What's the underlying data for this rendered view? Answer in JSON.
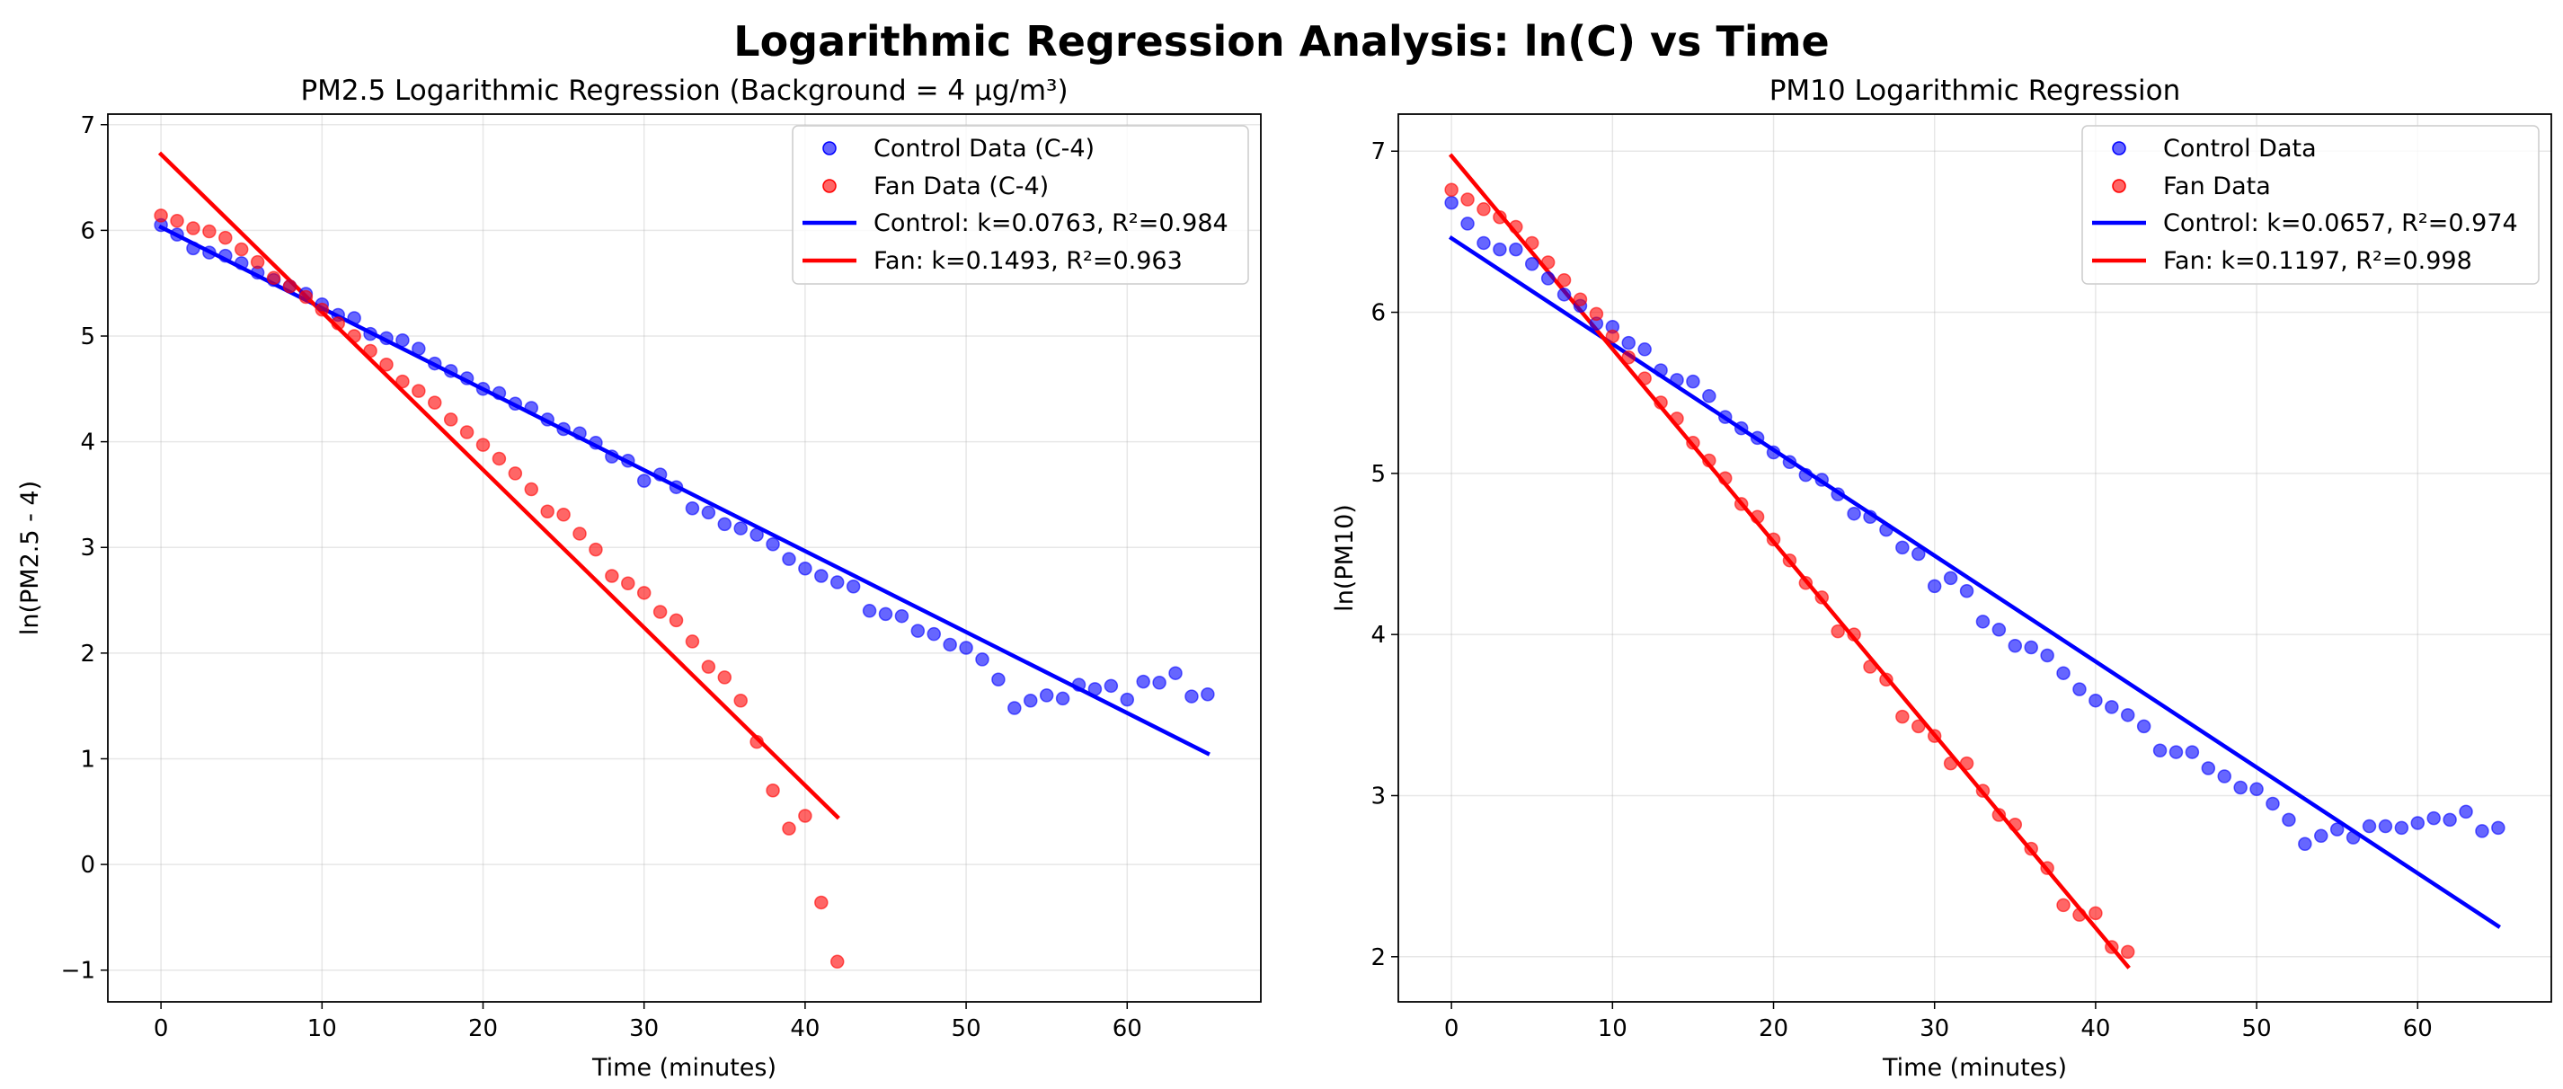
{
  "figure_title": "Logarithmic Regression Analysis: ln(C) vs Time",
  "colors": {
    "control": "#0000ff",
    "fan": "#ff0000"
  },
  "chart_data": [
    {
      "type": "scatter",
      "title": "PM2.5 Logarithmic Regression (Background = 4 μg/m³)",
      "xlabel": "Time (minutes)",
      "ylabel": "ln(PM2.5 - 4)",
      "xlim": [
        -3.3,
        68.3
      ],
      "ylim": [
        -1.3,
        7.1
      ],
      "xticks": [
        0,
        10,
        20,
        30,
        40,
        50,
        60
      ],
      "yticks": [
        -1,
        0,
        1,
        2,
        3,
        4,
        5,
        6,
        7
      ],
      "ytick_labels": [
        "−1",
        "0",
        "1",
        "2",
        "3",
        "4",
        "5",
        "6",
        "7"
      ],
      "grid": true,
      "legend_position": "upper right",
      "series": [
        {
          "name": "Control Data (C-4)",
          "kind": "scatter",
          "color": "#0000ff",
          "x": [
            0,
            1,
            2,
            3,
            4,
            5,
            6,
            7,
            8,
            9,
            10,
            11,
            12,
            13,
            14,
            15,
            16,
            17,
            18,
            19,
            20,
            21,
            22,
            23,
            24,
            25,
            26,
            27,
            28,
            29,
            30,
            31,
            32,
            33,
            34,
            35,
            36,
            37,
            38,
            39,
            40,
            41,
            42,
            43,
            44,
            45,
            46,
            47,
            48,
            49,
            50,
            51,
            52,
            53,
            54,
            55,
            56,
            57,
            58,
            59,
            60,
            61,
            62,
            63,
            64,
            65
          ],
          "y": [
            6.05,
            5.96,
            5.83,
            5.79,
            5.76,
            5.69,
            5.6,
            5.53,
            5.47,
            5.4,
            5.3,
            5.2,
            5.17,
            5.02,
            4.98,
            4.96,
            4.88,
            4.74,
            4.67,
            4.6,
            4.5,
            4.46,
            4.36,
            4.32,
            4.21,
            4.12,
            4.08,
            3.99,
            3.86,
            3.82,
            3.63,
            3.69,
            3.57,
            3.37,
            3.33,
            3.22,
            3.18,
            3.12,
            3.03,
            2.89,
            2.8,
            2.73,
            2.67,
            2.63,
            2.4,
            2.37,
            2.35,
            2.21,
            2.18,
            2.08,
            2.05,
            1.94,
            1.75,
            1.48,
            1.55,
            1.6,
            1.57,
            1.7,
            1.66,
            1.69,
            1.56,
            1.73,
            1.72,
            1.81,
            1.59,
            1.61
          ]
        },
        {
          "name": "Fan Data (C-4)",
          "kind": "scatter",
          "color": "#ff0000",
          "x": [
            0,
            1,
            2,
            3,
            4,
            5,
            6,
            7,
            8,
            9,
            10,
            11,
            12,
            13,
            14,
            15,
            16,
            17,
            18,
            19,
            20,
            21,
            22,
            23,
            24,
            25,
            26,
            27,
            28,
            29,
            30,
            31,
            32,
            33,
            34,
            35,
            36,
            37,
            38,
            39,
            40,
            41,
            42
          ],
          "y": [
            6.14,
            6.09,
            6.02,
            5.99,
            5.93,
            5.82,
            5.7,
            5.55,
            5.47,
            5.37,
            5.25,
            5.12,
            5.0,
            4.86,
            4.73,
            4.57,
            4.48,
            4.37,
            4.21,
            4.09,
            3.97,
            3.84,
            3.7,
            3.55,
            3.34,
            3.31,
            3.13,
            2.98,
            2.73,
            2.66,
            2.57,
            2.39,
            2.31,
            2.11,
            1.87,
            1.77,
            1.55,
            1.16,
            0.7,
            0.34,
            0.46,
            -0.36,
            -0.92
          ]
        },
        {
          "name": "Control: k=0.0763, R²=0.984",
          "kind": "line",
          "color": "#0000ff",
          "x": [
            0,
            65
          ],
          "y": [
            6.03,
            1.05
          ]
        },
        {
          "name": "Fan: k=0.1493, R²=0.963",
          "kind": "line",
          "color": "#ff0000",
          "x": [
            0,
            42
          ],
          "y": [
            6.72,
            0.45
          ]
        }
      ]
    },
    {
      "type": "scatter",
      "title": "PM10 Logarithmic Regression",
      "xlabel": "Time (minutes)",
      "ylabel": "ln(PM10)",
      "xlim": [
        -3.3,
        68.3
      ],
      "ylim": [
        1.72,
        7.23
      ],
      "xticks": [
        0,
        10,
        20,
        30,
        40,
        50,
        60
      ],
      "yticks": [
        2,
        3,
        4,
        5,
        6,
        7
      ],
      "ytick_labels": [
        "2",
        "3",
        "4",
        "5",
        "6",
        "7"
      ],
      "grid": true,
      "legend_position": "upper right",
      "series": [
        {
          "name": "Control Data",
          "kind": "scatter",
          "color": "#0000ff",
          "x": [
            0,
            1,
            2,
            3,
            4,
            5,
            6,
            7,
            8,
            9,
            10,
            11,
            12,
            13,
            14,
            15,
            16,
            17,
            18,
            19,
            20,
            21,
            22,
            23,
            24,
            25,
            26,
            27,
            28,
            29,
            30,
            31,
            32,
            33,
            34,
            35,
            36,
            37,
            38,
            39,
            40,
            41,
            42,
            43,
            44,
            45,
            46,
            47,
            48,
            49,
            50,
            51,
            52,
            53,
            54,
            55,
            56,
            57,
            58,
            59,
            60,
            61,
            62,
            63,
            64,
            65
          ],
          "y": [
            6.68,
            6.55,
            6.43,
            6.39,
            6.39,
            6.3,
            6.21,
            6.11,
            6.04,
            5.93,
            5.91,
            5.81,
            5.77,
            5.64,
            5.58,
            5.57,
            5.48,
            5.35,
            5.28,
            5.22,
            5.13,
            5.07,
            4.99,
            4.96,
            4.87,
            4.75,
            4.73,
            4.65,
            4.54,
            4.5,
            4.3,
            4.35,
            4.27,
            4.08,
            4.03,
            3.93,
            3.92,
            3.87,
            3.76,
            3.66,
            3.59,
            3.55,
            3.5,
            3.43,
            3.28,
            3.27,
            3.27,
            3.17,
            3.12,
            3.05,
            3.04,
            2.95,
            2.85,
            2.7,
            2.75,
            2.79,
            2.74,
            2.81,
            2.81,
            2.8,
            2.83,
            2.86,
            2.85,
            2.9,
            2.78,
            2.8
          ]
        },
        {
          "name": "Fan Data",
          "kind": "scatter",
          "color": "#ff0000",
          "x": [
            0,
            1,
            2,
            3,
            4,
            5,
            6,
            7,
            8,
            9,
            10,
            11,
            12,
            13,
            14,
            15,
            16,
            17,
            18,
            19,
            20,
            21,
            22,
            23,
            24,
            25,
            26,
            27,
            28,
            29,
            30,
            31,
            32,
            33,
            34,
            35,
            36,
            37,
            38,
            39,
            40,
            41,
            42
          ],
          "y": [
            6.76,
            6.7,
            6.64,
            6.59,
            6.53,
            6.43,
            6.31,
            6.2,
            6.08,
            5.99,
            5.85,
            5.72,
            5.59,
            5.44,
            5.34,
            5.19,
            5.08,
            4.97,
            4.81,
            4.73,
            4.59,
            4.46,
            4.32,
            4.23,
            4.02,
            4.0,
            3.8,
            3.72,
            3.49,
            3.43,
            3.37,
            3.2,
            3.2,
            3.03,
            2.88,
            2.82,
            2.67,
            2.55,
            2.32,
            2.26,
            2.27,
            2.06,
            2.03
          ]
        },
        {
          "name": "Control: k=0.0657, R²=0.974",
          "kind": "line",
          "color": "#0000ff",
          "x": [
            0,
            65
          ],
          "y": [
            6.46,
            2.19
          ]
        },
        {
          "name": "Fan: k=0.1197, R²=0.998",
          "kind": "line",
          "color": "#ff0000",
          "x": [
            0,
            42
          ],
          "y": [
            6.97,
            1.94
          ]
        }
      ]
    }
  ]
}
